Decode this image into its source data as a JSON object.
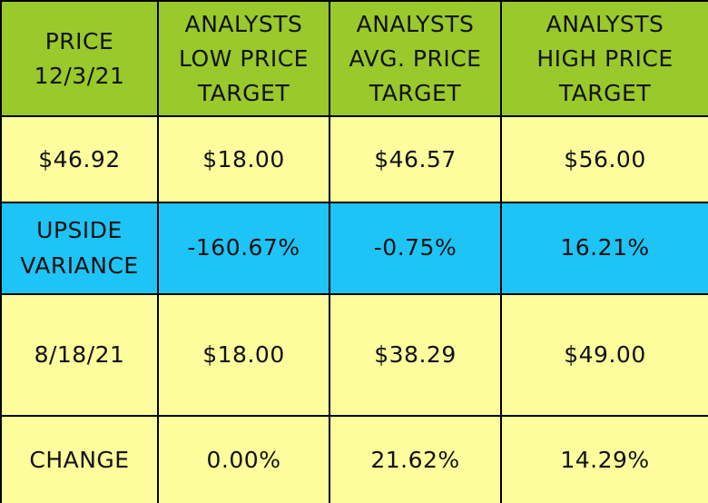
{
  "table": {
    "header": [
      [
        "PRICE",
        "12/3/21"
      ],
      [
        "ANALYSTS",
        "LOW PRICE",
        "TARGET"
      ],
      [
        "ANALYSTS",
        "AVG. PRICE",
        "TARGET"
      ],
      [
        "ANALYSTS",
        "HIGH PRICE",
        "TARGET"
      ]
    ],
    "rows": [
      [
        "$46.92",
        "$18.00",
        "$46.57",
        "$56.00"
      ],
      [
        [
          "UPSIDE",
          "VARIANCE"
        ],
        "-160.67%",
        "-0.75%",
        "16.21%"
      ],
      [
        "8/18/21",
        "$18.00",
        "$38.29",
        "$49.00"
      ],
      [
        "CHANGE",
        "0.00%",
        "21.62%",
        "14.29%"
      ]
    ]
  }
}
